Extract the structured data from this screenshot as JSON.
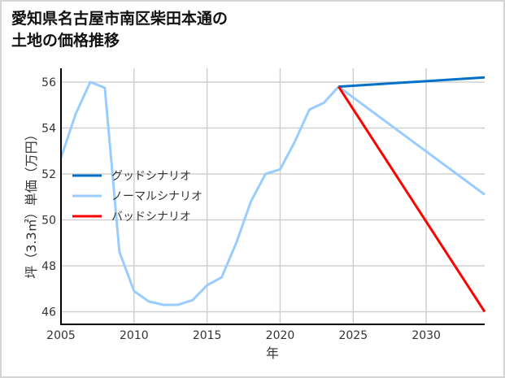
{
  "chart_data": {
    "type": "line",
    "title_line1": "愛知県名古屋市南区柴田本通の",
    "title_line2": "土地の価格推移",
    "xlabel": "年",
    "ylabel": "坪（3.3㎡）単価（万円）",
    "xlim": [
      2005,
      2034
    ],
    "ylim": [
      45.45,
      56.6
    ],
    "xticks": [
      2005,
      2010,
      2015,
      2020,
      2025,
      2030
    ],
    "yticks": [
      46,
      48,
      50,
      52,
      54,
      56
    ],
    "grid": true,
    "legend_placement": "center-left",
    "series": [
      {
        "name": "グッドシナリオ",
        "color": "#0070c8",
        "x": [
          2024,
          2034
        ],
        "values": [
          55.8,
          56.2
        ]
      },
      {
        "name": "ノーマルシナリオ",
        "color": "#99ccff",
        "x": [
          2005,
          2006,
          2007,
          2008,
          2009,
          2010,
          2011,
          2012,
          2013,
          2014,
          2015,
          2016,
          2017,
          2018,
          2019,
          2020,
          2021,
          2022,
          2023,
          2024,
          2034
        ],
        "values": [
          52.7,
          54.6,
          56.0,
          55.75,
          48.6,
          46.9,
          46.45,
          46.3,
          46.3,
          46.5,
          47.15,
          47.5,
          49.0,
          50.8,
          52.0,
          52.2,
          53.4,
          54.8,
          55.1,
          55.8,
          51.1
        ]
      },
      {
        "name": "バッドシナリオ",
        "color": "#ff0000",
        "x": [
          2024,
          2034
        ],
        "values": [
          55.8,
          46.0
        ]
      }
    ]
  }
}
